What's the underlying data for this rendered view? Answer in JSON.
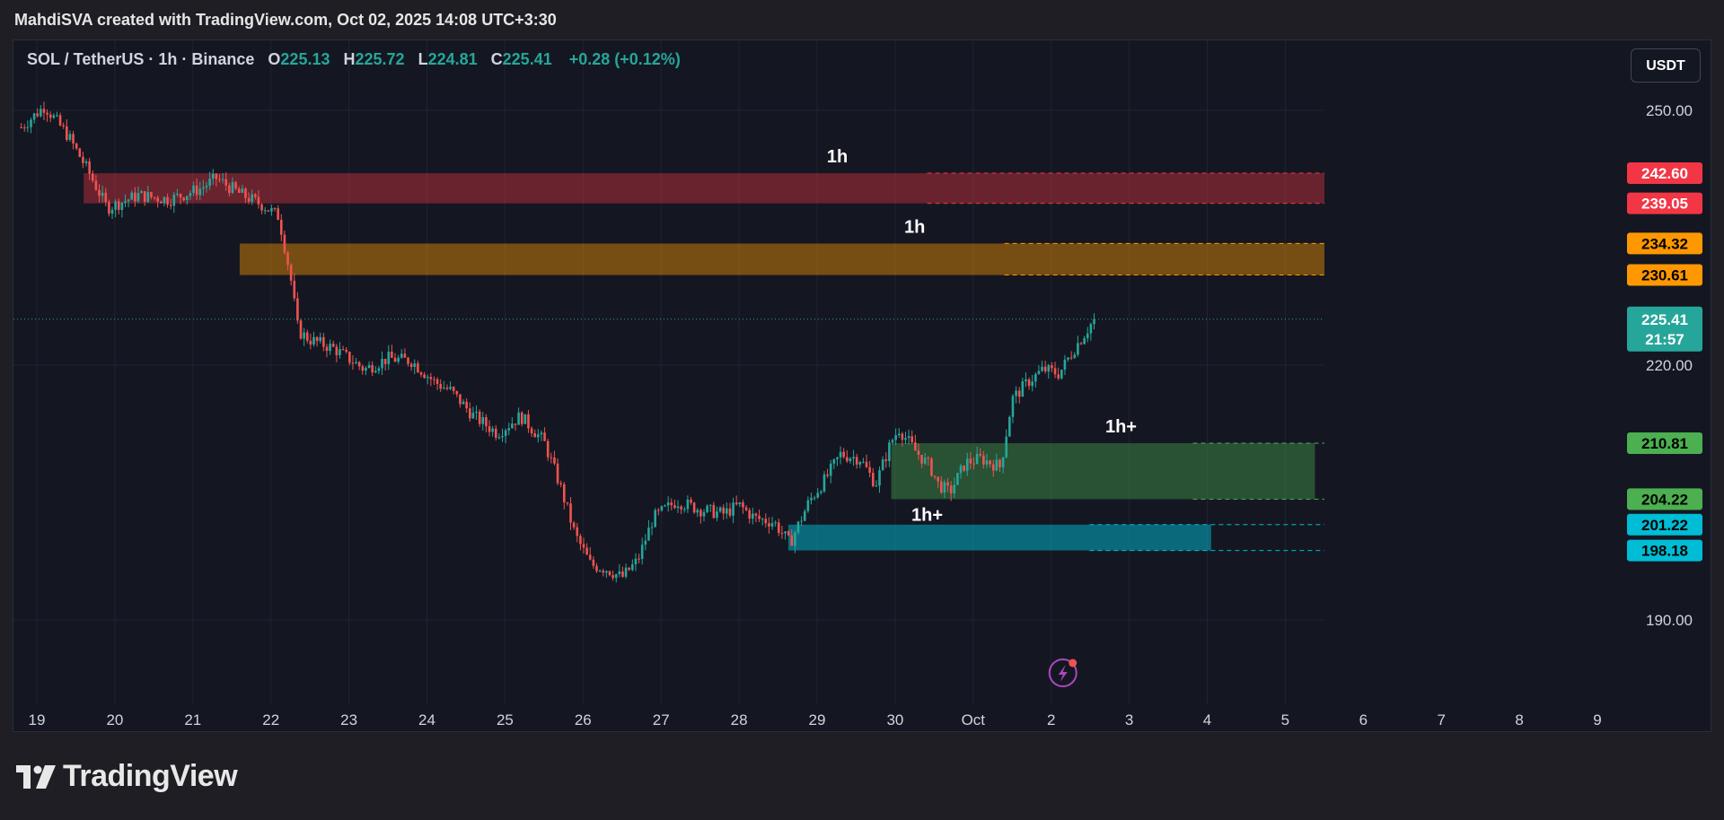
{
  "header": {
    "attribution": "MahdiSVA created with TradingView.com, Oct 02, 2025 14:08 UTC+3:30"
  },
  "legend": {
    "symbol": "SOL / TetherUS · 1h · Binance",
    "open_label": "O",
    "open": "225.13",
    "high_label": "H",
    "high": "225.72",
    "low_label": "L",
    "low": "224.81",
    "close_label": "C",
    "close": "225.41",
    "change": "+0.28 (+0.12%)"
  },
  "currency_button": "USDT",
  "footer": {
    "brand": "TradingView"
  },
  "colors": {
    "up": "#26a69a",
    "down": "#ef5350",
    "red_zone": "#f23645",
    "orange_zone": "#ff9800",
    "green_zone": "#4caf50",
    "blue_zone": "#00bcd4",
    "background": "#141722"
  },
  "chart_data": {
    "type": "candlestick",
    "title": "SOL / TetherUS · 1h · Binance",
    "ylim": [
      186,
      258
    ],
    "price_ticks": [
      "250.00",
      "220.00",
      "190.00"
    ],
    "x_ticks": [
      "19",
      "20",
      "21",
      "22",
      "23",
      "24",
      "25",
      "26",
      "27",
      "28",
      "29",
      "30",
      "Oct",
      "2",
      "3",
      "4",
      "5",
      "6",
      "7",
      "8",
      "9"
    ],
    "grid": true,
    "last_price": {
      "value": 225.41,
      "label": "225.41",
      "countdown": "21:57"
    },
    "zones": [
      {
        "label": "1h",
        "top": 242.6,
        "bottom": 239.05,
        "start_day": 19.6,
        "end_day": 8.92,
        "top_label": "242.60",
        "bottom_label": "239.05",
        "color": "red"
      },
      {
        "label": "1h",
        "top": 234.32,
        "bottom": 230.61,
        "start_day": 21.6,
        "end_day": 8.9,
        "top_label": "234.32",
        "bottom_label": "230.61",
        "color": "orange"
      },
      {
        "label": "1h+",
        "top": 210.81,
        "bottom": 204.22,
        "start_day": 29.95,
        "end_day": 5.38,
        "top_label": "210.81",
        "bottom_label": "204.22",
        "color": "green"
      },
      {
        "label": "",
        "top": 201.22,
        "bottom": 198.18,
        "start_day": 28.63,
        "end_day": 4.05,
        "top_label": "201.22",
        "bottom_label": "198.18",
        "color": "blue"
      }
    ],
    "series_path": [
      [
        18.8,
        248
      ],
      [
        19.1,
        250.5
      ],
      [
        19.4,
        247
      ],
      [
        19.65,
        243
      ],
      [
        19.9,
        238.5
      ],
      [
        20.3,
        240
      ],
      [
        20.7,
        239.5
      ],
      [
        21.1,
        240.8
      ],
      [
        21.3,
        242
      ],
      [
        21.6,
        240.2
      ],
      [
        21.9,
        238.8
      ],
      [
        22.1,
        237.5
      ],
      [
        22.25,
        230.5
      ],
      [
        22.35,
        224
      ],
      [
        22.5,
        223
      ],
      [
        22.8,
        222
      ],
      [
        23.2,
        219.5
      ],
      [
        23.5,
        220.8
      ],
      [
        23.8,
        220.5
      ],
      [
        24.1,
        218
      ],
      [
        24.3,
        217
      ],
      [
        24.6,
        214
      ],
      [
        24.9,
        212
      ],
      [
        25.2,
        214
      ],
      [
        25.5,
        211
      ],
      [
        25.7,
        206
      ],
      [
        25.9,
        200
      ],
      [
        26.1,
        196.5
      ],
      [
        26.3,
        196
      ],
      [
        26.5,
        195
      ],
      [
        26.7,
        197
      ],
      [
        26.9,
        202
      ],
      [
        27.2,
        204
      ],
      [
        27.5,
        203
      ],
      [
        27.8,
        202.5
      ],
      [
        28.0,
        203.5
      ],
      [
        28.2,
        202
      ],
      [
        28.45,
        201.5
      ],
      [
        28.65,
        199
      ],
      [
        28.9,
        204
      ],
      [
        29.1,
        206.5
      ],
      [
        29.3,
        209.5
      ],
      [
        29.55,
        209
      ],
      [
        29.75,
        206
      ],
      [
        29.95,
        211
      ],
      [
        30.05,
        212.5
      ],
      [
        30.25,
        210
      ],
      [
        30.45,
        208
      ],
      [
        30.55,
        206
      ],
      [
        30.7,
        205
      ],
      [
        30.9,
        208.5
      ],
      [
        31.1,
        209
      ],
      [
        31.35,
        208
      ],
      [
        31.5,
        216
      ],
      [
        31.7,
        218
      ],
      [
        31.9,
        219.5
      ],
      [
        32.1,
        219
      ],
      [
        32.3,
        222
      ],
      [
        32.45,
        224
      ],
      [
        32.55,
        225.41
      ]
    ]
  }
}
